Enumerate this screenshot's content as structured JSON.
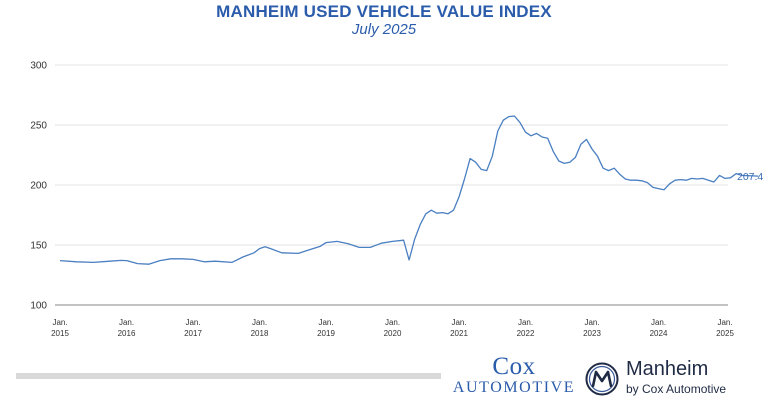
{
  "chart_data": {
    "type": "line",
    "title": "MANHEIM USED VEHICLE VALUE INDEX",
    "subtitle": "July 2025",
    "ylim": [
      100,
      300
    ],
    "yticks": [
      100,
      150,
      200,
      250,
      300
    ],
    "xticks": [
      {
        "line1": "Jan.",
        "line2": "2015",
        "date": "2015-01"
      },
      {
        "line1": "Jan.",
        "line2": "2016",
        "date": "2016-01"
      },
      {
        "line1": "Jan.",
        "line2": "2017",
        "date": "2017-01"
      },
      {
        "line1": "Jan.",
        "line2": "2018",
        "date": "2018-01"
      },
      {
        "line1": "Jan.",
        "line2": "2019",
        "date": "2019-01"
      },
      {
        "line1": "Jan.",
        "line2": "2020",
        "date": "2020-01"
      },
      {
        "line1": "Jan.",
        "line2": "2021",
        "date": "2021-01"
      },
      {
        "line1": "Jan.",
        "line2": "2022",
        "date": "2022-01"
      },
      {
        "line1": "Jan.",
        "line2": "2023",
        "date": "2023-01"
      },
      {
        "line1": "Jan.",
        "line2": "2024",
        "date": "2024-01"
      },
      {
        "line1": "Jan.",
        "line2": "2025",
        "date": "2025-01"
      }
    ],
    "grid": true,
    "line_color": "#4a7fc1",
    "last_value_label": "207.4",
    "series": [
      {
        "points": [
          [
            "2015-01",
            137.0
          ],
          [
            "2015-04",
            136.0
          ],
          [
            "2015-07",
            135.5
          ],
          [
            "2015-10",
            136.5
          ],
          [
            "2015-12",
            137.2
          ],
          [
            "2016-01",
            137.0
          ],
          [
            "2016-03",
            134.5
          ],
          [
            "2016-05",
            134.0
          ],
          [
            "2016-07",
            137.0
          ],
          [
            "2016-09",
            138.5
          ],
          [
            "2016-11",
            138.5
          ],
          [
            "2017-01",
            138.0
          ],
          [
            "2017-03",
            136.0
          ],
          [
            "2017-05",
            136.5
          ],
          [
            "2017-08",
            135.5
          ],
          [
            "2017-10",
            140.0
          ],
          [
            "2017-12",
            143.5
          ],
          [
            "2018-01",
            147.0
          ],
          [
            "2018-02",
            148.5
          ],
          [
            "2018-03",
            147.0
          ],
          [
            "2018-05",
            143.5
          ],
          [
            "2018-08",
            143.0
          ],
          [
            "2018-10",
            146.0
          ],
          [
            "2018-12",
            149.0
          ],
          [
            "2019-01",
            152.0
          ],
          [
            "2019-03",
            153.0
          ],
          [
            "2019-05",
            151.0
          ],
          [
            "2019-07",
            148.0
          ],
          [
            "2019-09",
            148.0
          ],
          [
            "2019-11",
            151.5
          ],
          [
            "2020-01",
            153.0
          ],
          [
            "2020-03",
            154.0
          ],
          [
            "2020-04",
            137.5
          ],
          [
            "2020-05",
            155.0
          ],
          [
            "2020-06",
            167.0
          ],
          [
            "2020-07",
            176.0
          ],
          [
            "2020-08",
            179.0
          ],
          [
            "2020-09",
            176.5
          ],
          [
            "2020-10",
            177.0
          ],
          [
            "2020-11",
            176.0
          ],
          [
            "2020-12",
            179.0
          ],
          [
            "2021-01",
            190.0
          ],
          [
            "2021-02",
            205.0
          ],
          [
            "2021-03",
            222.0
          ],
          [
            "2021-04",
            219.0
          ],
          [
            "2021-05",
            213.0
          ],
          [
            "2021-06",
            212.0
          ],
          [
            "2021-07",
            224.0
          ],
          [
            "2021-08",
            245.0
          ],
          [
            "2021-09",
            254.0
          ],
          [
            "2021-10",
            257.0
          ],
          [
            "2021-11",
            257.5
          ],
          [
            "2021-12",
            252.0
          ],
          [
            "2022-01",
            244.0
          ],
          [
            "2022-02",
            241.0
          ],
          [
            "2022-03",
            243.0
          ],
          [
            "2022-04",
            240.0
          ],
          [
            "2022-05",
            239.0
          ],
          [
            "2022-06",
            228.0
          ],
          [
            "2022-07",
            220.0
          ],
          [
            "2022-08",
            218.0
          ],
          [
            "2022-09",
            219.0
          ],
          [
            "2022-10",
            223.0
          ],
          [
            "2022-11",
            234.0
          ],
          [
            "2022-12",
            238.0
          ],
          [
            "2023-01",
            230.0
          ],
          [
            "2023-02",
            224.0
          ],
          [
            "2023-03",
            214.0
          ],
          [
            "2023-04",
            212.0
          ],
          [
            "2023-05",
            214.0
          ],
          [
            "2023-06",
            209.0
          ],
          [
            "2023-07",
            205.0
          ],
          [
            "2023-08",
            204.0
          ],
          [
            "2023-09",
            204.0
          ],
          [
            "2023-10",
            203.5
          ],
          [
            "2023-11",
            202.0
          ],
          [
            "2023-12",
            198.0
          ],
          [
            "2024-01",
            197.0
          ],
          [
            "2024-02",
            196.0
          ],
          [
            "2024-03",
            201.0
          ],
          [
            "2024-04",
            204.0
          ],
          [
            "2024-05",
            204.5
          ],
          [
            "2024-06",
            204.0
          ],
          [
            "2024-07",
            205.5
          ],
          [
            "2024-08",
            205.0
          ],
          [
            "2024-09",
            205.5
          ],
          [
            "2024-10",
            204.0
          ],
          [
            "2024-11",
            202.5
          ],
          [
            "2024-12",
            208.0
          ],
          [
            "2025-01",
            205.5
          ],
          [
            "2025-02",
            206.0
          ],
          [
            "2025-03",
            209.5
          ],
          [
            "2025-04",
            208.0
          ],
          [
            "2025-07",
            207.4
          ]
        ]
      }
    ]
  },
  "footer": {
    "cox_word": "Cox",
    "cox_sub": "AUTOMOTIVE",
    "manheim_name": "Manheim",
    "manheim_tag": "by Cox Automotive"
  }
}
